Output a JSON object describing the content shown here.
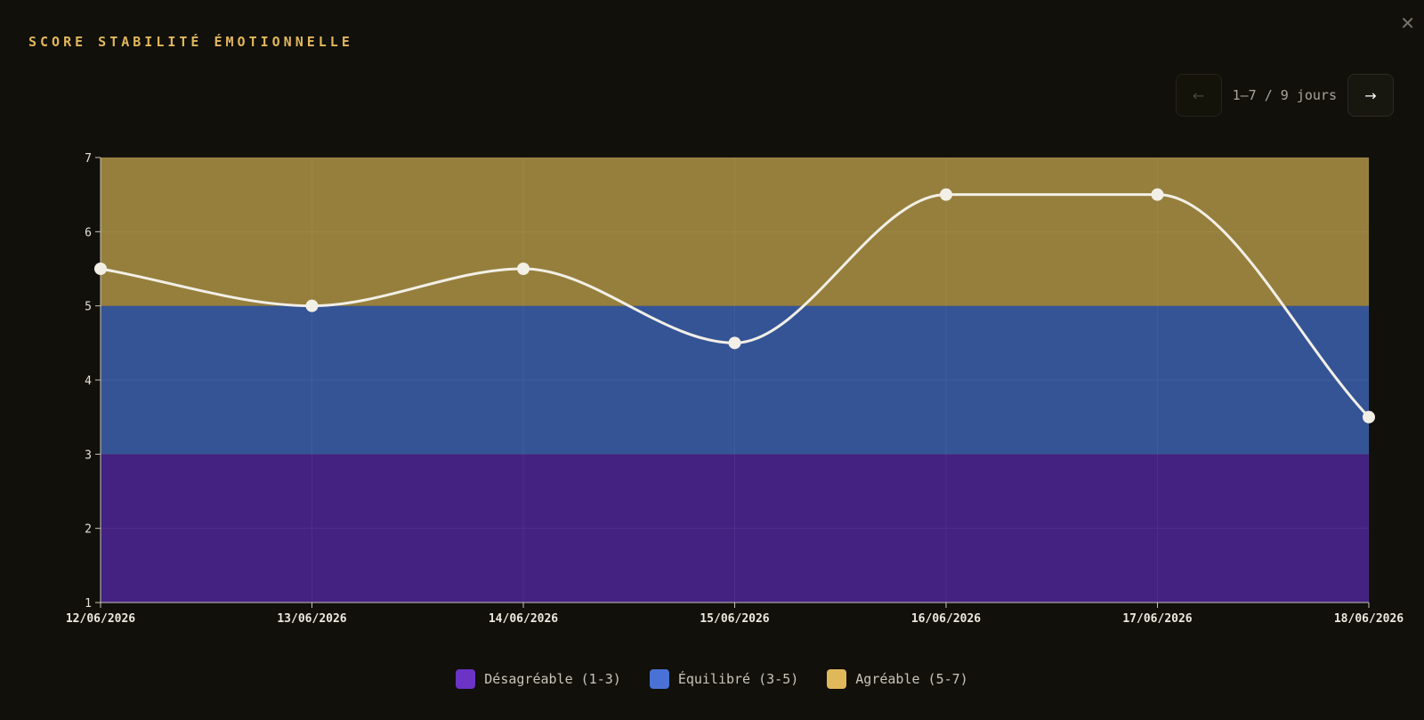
{
  "header": {
    "title": "SCORE STABILITÉ ÉMOTIONNELLE",
    "close_label": "✕"
  },
  "pager": {
    "prev_label": "←",
    "next_label": "→",
    "range_label": "1–7 / 9 jours"
  },
  "chart_data": {
    "type": "line",
    "title": "SCORE STABILITÉ ÉMOTIONNELLE",
    "xlabel": "",
    "ylabel": "",
    "categories": [
      "12/06/2026",
      "13/06/2026",
      "14/06/2026",
      "15/06/2026",
      "16/06/2026",
      "17/06/2026",
      "18/06/2026"
    ],
    "values": [
      5.5,
      5.0,
      5.5,
      4.5,
      6.5,
      6.5,
      3.5
    ],
    "ylim": [
      1,
      7
    ],
    "yticks": [
      1,
      2,
      3,
      4,
      5,
      6,
      7
    ],
    "grid": true,
    "line_color": "#f2efe6",
    "bands": [
      {
        "label": "Désagréable (1-3)",
        "from": 1,
        "to": 3,
        "color": "#442281",
        "swatch": "#6b34c6"
      },
      {
        "label": "Équilibré (3-5)",
        "from": 3,
        "to": 5,
        "color": "#355495",
        "swatch": "#4a72d6"
      },
      {
        "label": "Agréable (5-7)",
        "from": 5,
        "to": 7,
        "color": "#967f3d",
        "swatch": "#e0b85a"
      }
    ],
    "legend_position": "bottom"
  }
}
